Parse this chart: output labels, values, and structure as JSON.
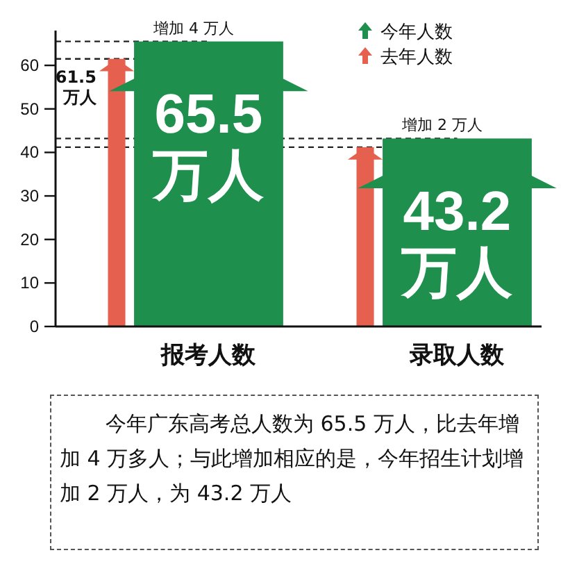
{
  "chart_data": {
    "type": "bar",
    "categories": [
      "报考人数",
      "录取人数"
    ],
    "series": [
      {
        "name": "今年人数",
        "color": "#1f8f4e",
        "values": [
          65.5,
          43.2
        ],
        "value_labels": [
          "65.5万人",
          "43.2万人"
        ]
      },
      {
        "name": "去年人数",
        "color": "#e5604e",
        "values": [
          61.5,
          41.2
        ],
        "value_labels": [
          "61.5万人",
          null
        ]
      }
    ],
    "ylim": [
      0,
      68
    ],
    "yticks": [
      0,
      10,
      20,
      30,
      40,
      50,
      60
    ],
    "grid": false,
    "legend": "top right",
    "ref_lines": [
      {
        "axis": "y",
        "value": 65.5,
        "line_style": "dashed",
        "color": "#222222"
      },
      {
        "axis": "y",
        "value": 61.5,
        "line_style": "dashed",
        "color": "#222222"
      },
      {
        "axis": "y",
        "value": 43.2,
        "line_style": "dashed",
        "color": "#222222"
      },
      {
        "axis": "y",
        "value": 41.2,
        "line_style": "dashed",
        "color": "#222222"
      }
    ],
    "annotations": [
      {
        "text": "增加 4 万人",
        "x": "报考人数",
        "y": 65.5
      },
      {
        "text": "增加 2 万人",
        "x": "录取人数",
        "y": 43.2
      },
      "今年广东高考总人数为 65.5 万人，比去年增加 4 万多人；与此增加相应的是，今年招生计划增加 2 万人，为 43.2 万人"
    ]
  }
}
